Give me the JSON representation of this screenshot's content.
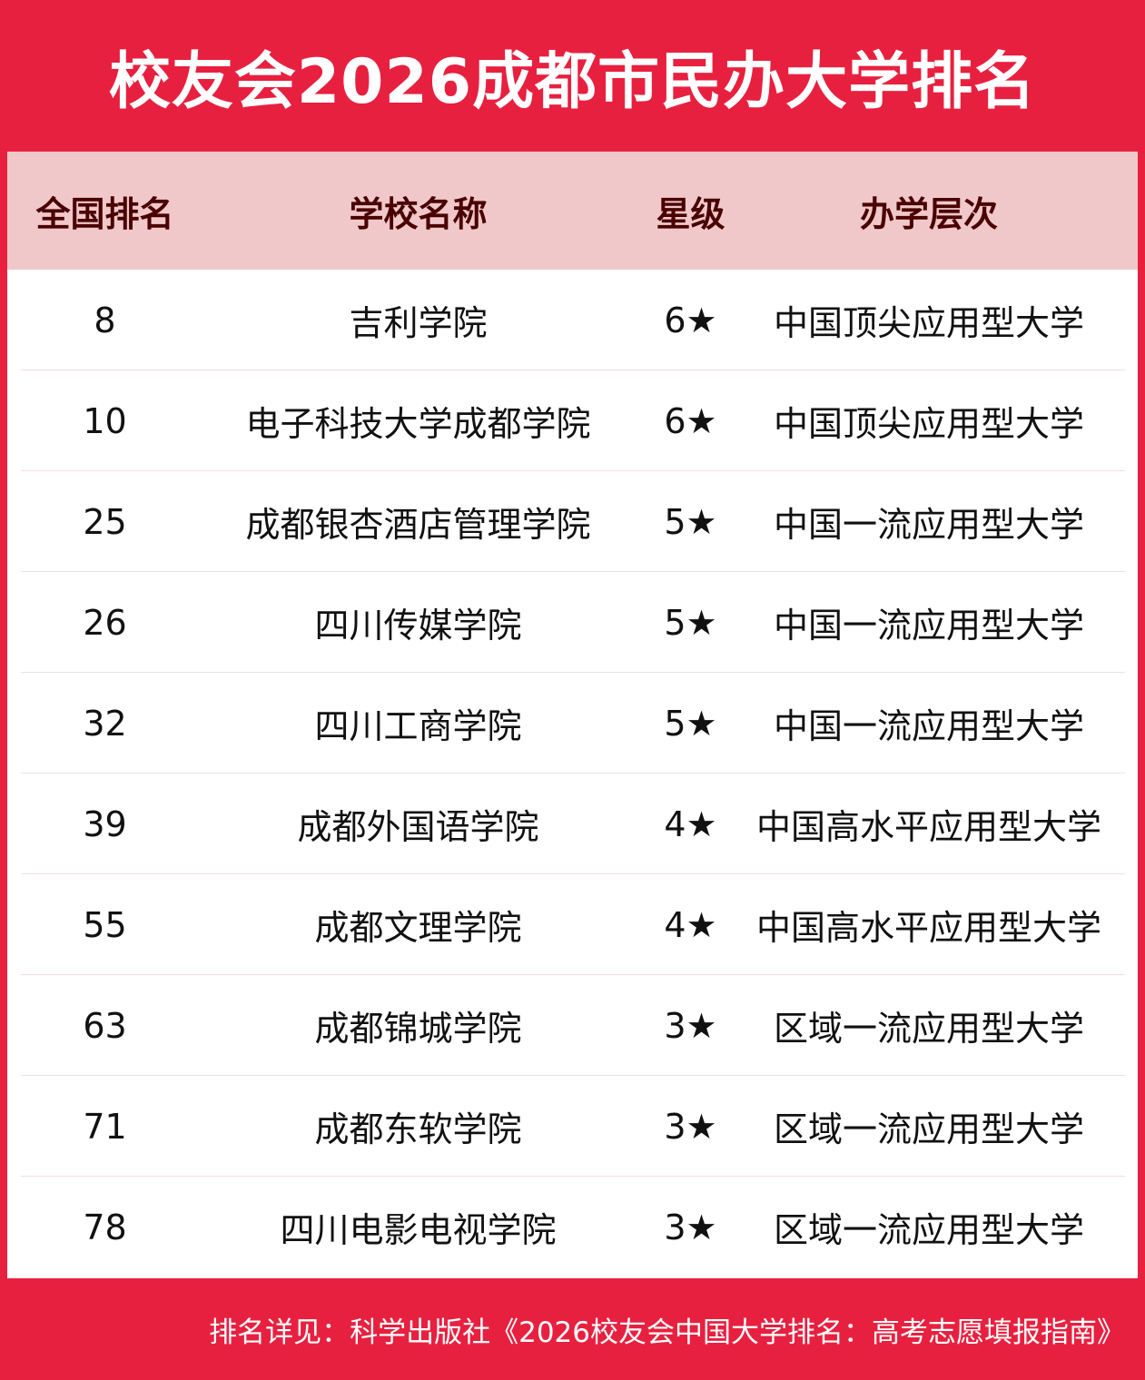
{
  "title": "校友会2026成都市民办大学排名",
  "columns": [
    "全国排名",
    "学校名称",
    "星级",
    "办学层次"
  ],
  "rows": [
    {
      "rank": "8",
      "name": "吉利学院",
      "stars": "6★",
      "level": "中国顶尖应用型大学"
    },
    {
      "rank": "10",
      "name": "电子科技大学成都学院",
      "stars": "6★",
      "level": "中国顶尖应用型大学"
    },
    {
      "rank": "25",
      "name": "成都银杏酒店管理学院",
      "stars": "5★",
      "level": "中国一流应用型大学"
    },
    {
      "rank": "26",
      "name": "四川传媒学院",
      "stars": "5★",
      "level": "中国一流应用型大学"
    },
    {
      "rank": "32",
      "name": "四川工商学院",
      "stars": "5★",
      "level": "中国一流应用型大学"
    },
    {
      "rank": "39",
      "name": "成都外国语学院",
      "stars": "4★",
      "level": "中国高水平应用型大学"
    },
    {
      "rank": "55",
      "name": "成都文理学院",
      "stars": "4★",
      "level": "中国高水平应用型大学"
    },
    {
      "rank": "63",
      "name": "成都锦城学院",
      "stars": "3★",
      "level": "区域一流应用型大学"
    },
    {
      "rank": "71",
      "name": "成都东软学院",
      "stars": "3★",
      "level": "区域一流应用型大学"
    },
    {
      "rank": "78",
      "name": "四川电影电视学院",
      "stars": "3★",
      "level": "区域一流应用型大学"
    }
  ],
  "footer": "排名详见：科学出版社《2026校友会中国大学排名：高考志愿填报指南》",
  "colors": {
    "brand_red": "#e8203f",
    "header_bg": "#f0c8c9",
    "header_text": "#4a0000"
  }
}
